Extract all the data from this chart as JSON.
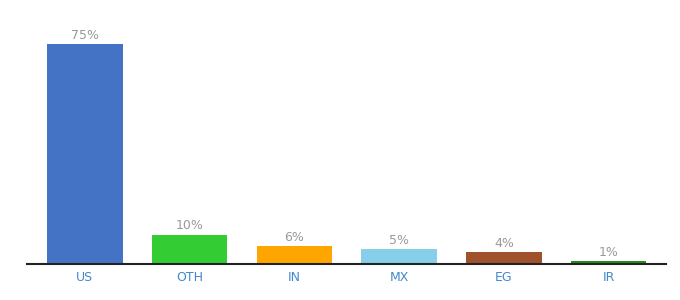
{
  "categories": [
    "US",
    "OTH",
    "IN",
    "MX",
    "EG",
    "IR"
  ],
  "values": [
    75,
    10,
    6,
    5,
    4,
    1
  ],
  "bar_colors": [
    "#4472C4",
    "#33CC33",
    "#FFA500",
    "#87CEEB",
    "#A0522D",
    "#228B22"
  ],
  "label_color": "#999999",
  "xlabel_color": "#4488CC",
  "ylim": [
    0,
    82
  ],
  "background_color": "#ffffff",
  "label_fontsize": 9,
  "tick_fontsize": 9,
  "bar_width": 0.72
}
